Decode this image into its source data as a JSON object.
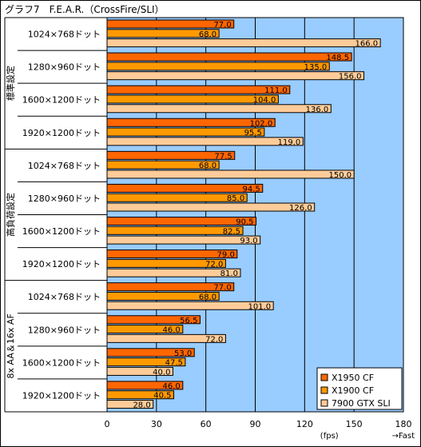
{
  "chart_data": {
    "type": "bar",
    "orientation": "horizontal",
    "title": "グラフ7　F.E.A.R.（CrossFire/SLI）",
    "groups": [
      {
        "label": "標準設定",
        "resolutions": [
          "1024×768ドット",
          "1280×960ドット",
          "1600×1200ドット",
          "1920×1200ドット"
        ]
      },
      {
        "label": "高負荷設定",
        "resolutions": [
          "1024×768ドット",
          "1280×960ドット",
          "1600×1200ドット",
          "1920×1200ドット"
        ]
      },
      {
        "label": "8x AA＆16x AF",
        "resolutions": [
          "1024×768ドット",
          "1280×960ドット",
          "1600×1200ドット",
          "1920×1200ドット"
        ]
      }
    ],
    "series": [
      {
        "name": "X1950 CF",
        "color": "#ff6600",
        "values": [
          77.0,
          148.5,
          111.0,
          102.0,
          77.5,
          94.5,
          90.5,
          79.0,
          77.0,
          56.5,
          53.0,
          46.0
        ]
      },
      {
        "name": "X1900 CF",
        "color": "#ff9900",
        "values": [
          68.0,
          135.0,
          104.0,
          95.5,
          68.0,
          85.0,
          82.5,
          72.0,
          68.0,
          46.0,
          47.5,
          40.5
        ]
      },
      {
        "name": "7900 GTX SLI",
        "color": "#ffcc99",
        "values": [
          166.0,
          156.0,
          136.0,
          119.0,
          150.0,
          126.0,
          93.0,
          81.0,
          101.0,
          72.0,
          40.0,
          28.0
        ]
      }
    ],
    "xlim": [
      0,
      180
    ],
    "xticks": [
      0,
      30,
      60,
      90,
      120,
      150,
      180
    ],
    "xunit": "(fps)",
    "direction_label": "→Fast",
    "legend_position": "bottom-right",
    "plot_background": "#99ccff",
    "grid": true
  }
}
